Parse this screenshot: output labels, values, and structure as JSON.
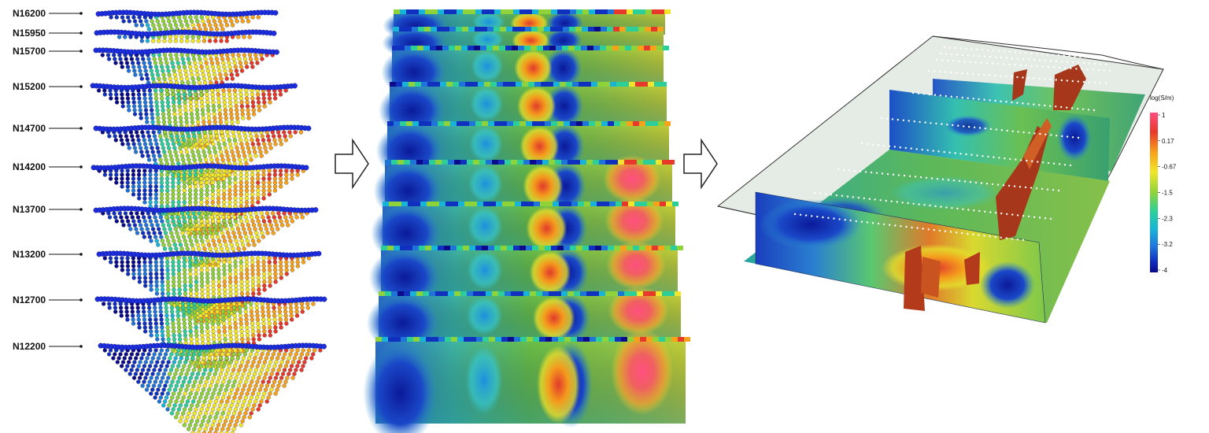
{
  "survey_lines": [
    "N16200",
    "N15950",
    "N15700",
    "N15200",
    "N14700",
    "N14200",
    "N13700",
    "N13200",
    "N12700",
    "N12200"
  ],
  "flow_arrows": [
    "arrow-right-icon",
    "arrow-right-icon"
  ],
  "colorbar": {
    "title": "log(S/m)",
    "ticks": [
      "1",
      "0.17",
      "-0.67",
      "-1.5",
      "-2.3",
      "-3.2",
      "-4"
    ],
    "colors": [
      "#ff4f7f",
      "#e8382c",
      "#f7a21a",
      "#f2e62a",
      "#8fd33a",
      "#2ccf9a",
      "#17b4d8",
      "#1f74da",
      "#1030c0",
      "#0a0a8a"
    ]
  },
  "colors": {
    "conductor": "#b33b1b",
    "shell": "#dfe9e0",
    "electrode": "#1b2ee0"
  }
}
